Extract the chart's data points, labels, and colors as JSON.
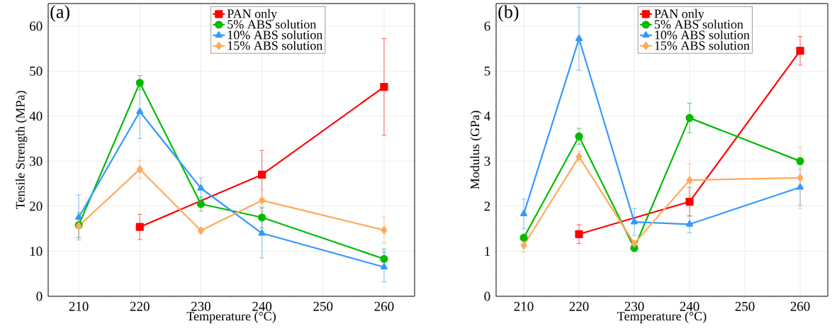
{
  "chart_data": [
    {
      "type": "line",
      "annotations": [
        "(a)"
      ],
      "xlabel": "Temperature (°C)",
      "ylabel": "Tensile Strength (MPa)",
      "x": [
        210,
        220,
        230,
        240,
        260
      ],
      "xlim": [
        205,
        265
      ],
      "xticks": [
        210,
        220,
        230,
        240,
        250,
        260
      ],
      "ylim": [
        0,
        65
      ],
      "yticks": [
        0,
        10,
        20,
        30,
        40,
        50,
        60
      ],
      "grid": true,
      "legend": "top",
      "line_style": "solid",
      "series": [
        {
          "name": "PAN only",
          "color": "#ff0000",
          "marker": "square",
          "x": [
            220,
            240,
            260
          ],
          "values": [
            15.4,
            27.0,
            46.5
          ],
          "errors": [
            2.8,
            5.4,
            10.7
          ]
        },
        {
          "name": "5% ABS solution",
          "color": "#00bb00",
          "marker": "circle",
          "values": [
            15.8,
            47.4,
            20.5,
            17.5,
            8.3
          ],
          "errors": [
            2.8,
            1.6,
            1.6,
            2.3,
            2.2
          ]
        },
        {
          "name": "10% ABS solution",
          "color": "#3399ff",
          "marker": "triangle",
          "values": [
            17.5,
            41.0,
            24.0,
            14.0,
            6.5
          ],
          "errors": [
            5.0,
            6.0,
            2.3,
            5.5,
            3.3
          ]
        },
        {
          "name": "15% ABS solution",
          "color": "#ffaa5a",
          "marker": "diamond",
          "values": [
            15.6,
            28.2,
            14.6,
            21.3,
            14.7
          ],
          "errors": [
            2.5,
            2.0,
            0.5,
            2.3,
            2.9
          ]
        }
      ]
    },
    {
      "type": "line",
      "annotations": [
        "(b)"
      ],
      "xlabel": "Temperature (°C)",
      "ylabel": "Modulus (GPa)",
      "x": [
        210,
        220,
        230,
        240,
        260
      ],
      "xlim": [
        205,
        265
      ],
      "xticks": [
        210,
        220,
        230,
        240,
        250,
        260
      ],
      "ylim": [
        0,
        6.5
      ],
      "yticks": [
        0,
        1,
        2,
        3,
        4,
        5,
        6
      ],
      "grid": true,
      "legend": "top",
      "line_style": "solid",
      "series": [
        {
          "name": "PAN only",
          "color": "#ff0000",
          "marker": "square",
          "x": [
            220,
            240,
            260
          ],
          "values": [
            1.38,
            2.1,
            5.45
          ],
          "errors": [
            0.21,
            0.32,
            0.32
          ]
        },
        {
          "name": "5% ABS solution",
          "color": "#00bb00",
          "marker": "circle",
          "values": [
            1.3,
            3.55,
            1.07,
            3.96,
            3.0
          ],
          "errors": [
            0.05,
            0.18,
            0.05,
            0.33,
            0.08
          ]
        },
        {
          "name": "10% ABS solution",
          "color": "#3399ff",
          "marker": "triangle",
          "values": [
            1.83,
            5.72,
            1.65,
            1.6,
            2.42
          ],
          "errors": [
            0.33,
            0.7,
            0.3,
            0.19,
            0.4
          ]
        },
        {
          "name": "15% ABS solution",
          "color": "#ffaa5a",
          "marker": "diamond",
          "values": [
            1.13,
            3.1,
            1.17,
            2.58,
            2.63
          ],
          "errors": [
            0.15,
            0.12,
            0.05,
            0.36,
            0.68
          ]
        }
      ]
    }
  ]
}
